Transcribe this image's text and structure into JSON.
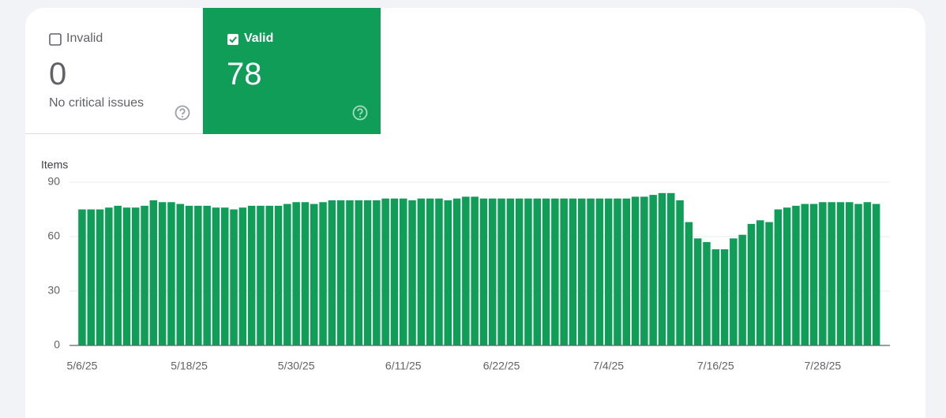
{
  "cards": [
    {
      "label": "Invalid",
      "value": 0,
      "note": "No critical issues",
      "checked": false
    },
    {
      "label": "Valid",
      "value": 78,
      "checked": true
    }
  ],
  "chart_data": {
    "type": "bar",
    "y_label": "Items",
    "categories": [
      "5/6/25",
      null,
      null,
      null,
      null,
      null,
      null,
      null,
      null,
      null,
      null,
      null,
      "5/18/25",
      null,
      null,
      null,
      null,
      null,
      null,
      null,
      null,
      null,
      null,
      null,
      "5/30/25",
      null,
      null,
      null,
      null,
      null,
      null,
      null,
      null,
      null,
      null,
      null,
      "6/11/25",
      null,
      null,
      null,
      null,
      null,
      null,
      null,
      null,
      null,
      null,
      "6/22/25",
      null,
      null,
      null,
      null,
      null,
      null,
      null,
      null,
      null,
      null,
      null,
      "7/4/25",
      null,
      null,
      null,
      null,
      null,
      null,
      null,
      null,
      null,
      null,
      null,
      "7/16/25",
      null,
      null,
      null,
      null,
      null,
      null,
      null,
      null,
      null,
      null,
      null,
      "7/28/25",
      null,
      null,
      null,
      null,
      null,
      null
    ],
    "values": [
      75,
      75,
      75,
      76,
      77,
      76,
      76,
      77,
      80,
      79,
      79,
      78,
      77,
      77,
      77,
      76,
      76,
      75,
      76,
      77,
      77,
      77,
      77,
      78,
      79,
      79,
      78,
      79,
      80,
      80,
      80,
      80,
      80,
      80,
      81,
      81,
      81,
      80,
      81,
      81,
      81,
      80,
      81,
      82,
      82,
      81,
      81,
      81,
      81,
      81,
      81,
      81,
      81,
      81,
      81,
      81,
      81,
      81,
      81,
      81,
      81,
      81,
      82,
      82,
      83,
      84,
      84,
      80,
      68,
      59,
      57,
      53,
      53,
      59,
      61,
      67,
      69,
      68,
      75,
      76,
      77,
      78,
      78,
      79,
      79,
      79,
      79,
      78,
      79,
      78
    ],
    "color": "#0f9d58",
    "ylim": [
      0,
      90
    ],
    "yticks": [
      0,
      30,
      60,
      90
    ],
    "grid": true
  }
}
